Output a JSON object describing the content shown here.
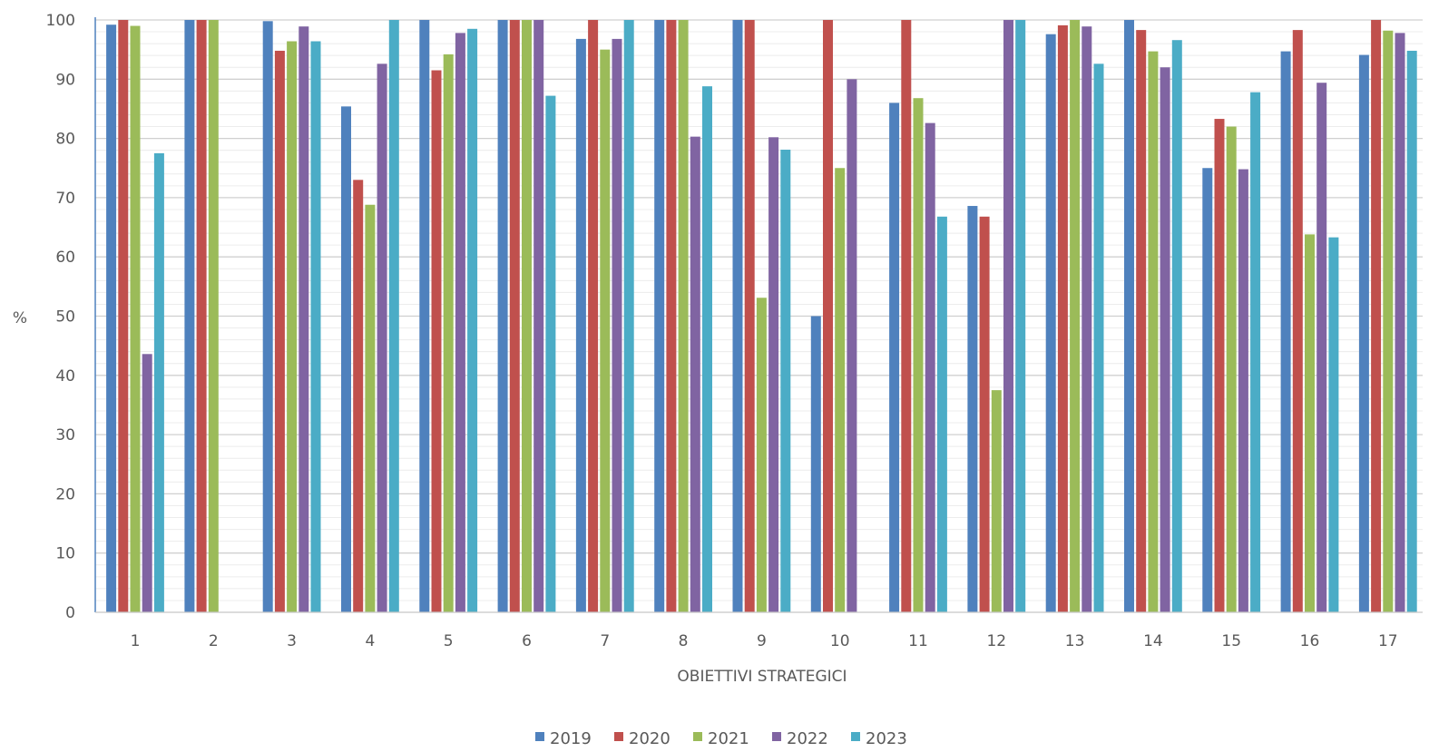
{
  "chart_data": {
    "type": "bar",
    "xlabel": "OBIETTIVI STRATEGICI",
    "ylabel": "%",
    "ylim": [
      0,
      100
    ],
    "yticks": [
      "0",
      "10",
      "20",
      "30",
      "40",
      "50",
      "60",
      "70",
      "80",
      "90",
      "100"
    ],
    "grid": "horizontal",
    "legend_position": "bottom",
    "categories": [
      "1",
      "2",
      "3",
      "4",
      "5",
      "6",
      "7",
      "8",
      "9",
      "10",
      "11",
      "12",
      "13",
      "14",
      "15",
      "16",
      "17"
    ],
    "series": [
      {
        "name": "2019",
        "color": "#4F81BD",
        "values": [
          99.2,
          100,
          99.8,
          85.4,
          100,
          100,
          96.8,
          100,
          100,
          50,
          86,
          68.6,
          97.6,
          100,
          75,
          94.7,
          94.1
        ]
      },
      {
        "name": "2020",
        "color": "#C0504D",
        "values": [
          100,
          100,
          94.8,
          73,
          91.5,
          100,
          100,
          100,
          100,
          100,
          100,
          66.8,
          99.1,
          98.3,
          83.3,
          98.3,
          100
        ]
      },
      {
        "name": "2021",
        "color": "#9BBB59",
        "values": [
          99,
          100,
          96.4,
          68.8,
          94.2,
          100,
          95,
          100,
          53.1,
          75,
          86.8,
          37.5,
          100,
          94.7,
          82,
          63.8,
          98.2
        ]
      },
      {
        "name": "2022",
        "color": "#8064A2",
        "values": [
          43.6,
          null,
          98.9,
          92.6,
          97.8,
          100,
          96.8,
          80.3,
          80.2,
          90,
          82.6,
          100,
          98.9,
          92,
          74.8,
          89.4,
          97.8
        ]
      },
      {
        "name": "2023",
        "color": "#4BACC6",
        "values": [
          77.5,
          null,
          96.4,
          100,
          98.5,
          87.2,
          100,
          88.8,
          78.1,
          null,
          66.8,
          100,
          92.6,
          96.6,
          87.8,
          63.3,
          94.8
        ]
      }
    ]
  }
}
